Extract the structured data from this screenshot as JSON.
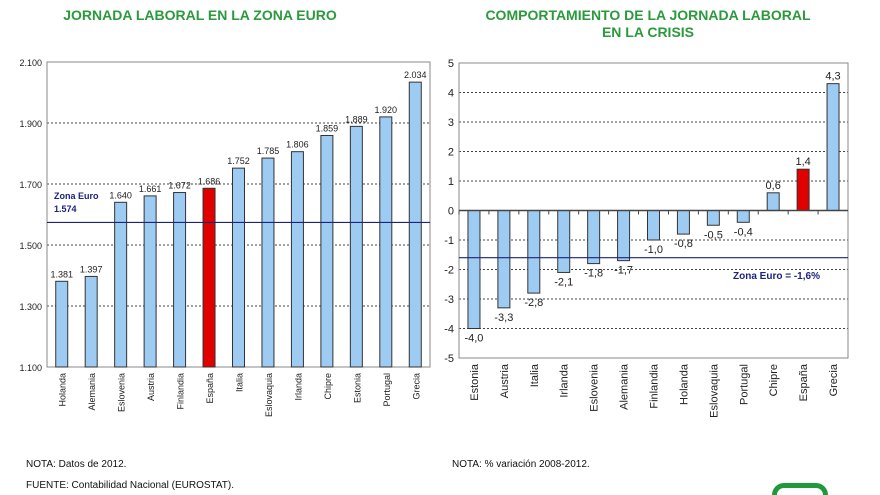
{
  "chart_data": [
    {
      "type": "bar",
      "title": "JORNADA LABORAL EN LA ZONA EURO",
      "categories": [
        "Holanda",
        "Alemania",
        "Eslovenia",
        "Austria",
        "Finlandia",
        "España",
        "Italia",
        "Eslovaquia",
        "Irlanda",
        "Chipre",
        "Estonia",
        "Portugal",
        "Grecia"
      ],
      "values": [
        1381,
        1397,
        1640,
        1661,
        1672,
        1686,
        1752,
        1785,
        1806,
        1859,
        1889,
        1920,
        2034
      ],
      "data_labels": [
        "1.381",
        "1.397",
        "1.640",
        "1.661",
        "1.672",
        "1.686",
        "1.752",
        "1.785",
        "1.806",
        "1.859",
        "1.889",
        "1.920",
        "2.034"
      ],
      "highlight": "España",
      "ylim": [
        1100,
        2100
      ],
      "yticks": [
        1100,
        1300,
        1500,
        1700,
        1900,
        2100
      ],
      "ytick_labels": [
        "1.100",
        "1.300",
        "1.500",
        "1.700",
        "1.900",
        "2.100"
      ],
      "reference_line": {
        "value": 1574,
        "label_line1": "Zona Euro",
        "label_line2": "1.574"
      },
      "grid": "horizontal dotted",
      "note": "NOTA: Datos de 2012.",
      "source": "FUENTE: Contabilidad Nacional (EUROSTAT)."
    },
    {
      "type": "bar",
      "title_line1": "COMPORTAMIENTO DE LA  JORNADA LABORAL",
      "title_line2": "EN LA CRISIS",
      "categories": [
        "Estonia",
        "Austria",
        "Italia",
        "Irlanda",
        "Eslovenia",
        "Alemania",
        "Finlandia",
        "Holanda",
        "Eslovaquia",
        "Portugal",
        "Chipre",
        "España",
        "Grecia"
      ],
      "values": [
        -4.0,
        -3.3,
        -2.8,
        -2.1,
        -1.8,
        -1.7,
        -1.0,
        -0.8,
        -0.5,
        -0.4,
        0.6,
        1.4,
        4.3
      ],
      "data_labels": [
        "-4,0",
        "-3,3",
        "-2,8",
        "-2,1",
        "-1,8",
        "-1,7",
        "-1,0",
        "-0,8",
        "-0,5",
        "-0,4",
        "0,6",
        "1,4",
        "4,3"
      ],
      "highlight": "España",
      "ylim": [
        -5,
        5
      ],
      "yticks": [
        -5,
        -4,
        -3,
        -2,
        -1,
        0,
        1,
        2,
        3,
        4,
        5
      ],
      "reference_line": {
        "value": -1.6,
        "label": "Zona Euro = -1,6%"
      },
      "grid": "horizontal dotted",
      "note": "NOTA: % variación 2008-2012."
    }
  ],
  "colors": {
    "bar": "#9dcbf2",
    "highlight": "#e00000",
    "reference_line": "#1a237e",
    "title": "#2a9a3c"
  }
}
